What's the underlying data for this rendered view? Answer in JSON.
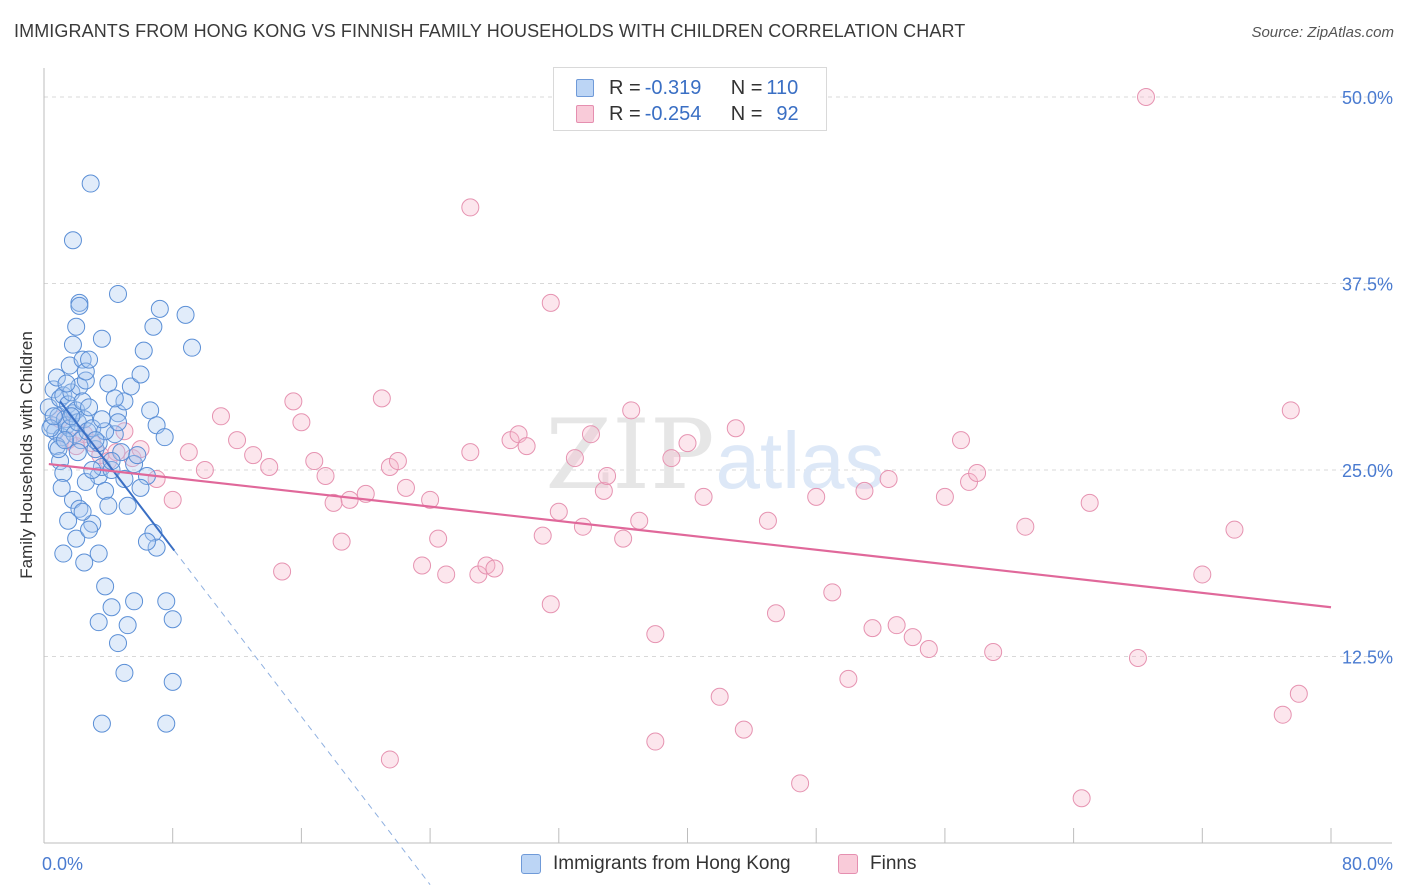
{
  "title": "IMMIGRANTS FROM HONG KONG VS FINNISH FAMILY HOUSEHOLDS WITH CHILDREN CORRELATION CHART",
  "source": "Source: ZipAtlas.com",
  "watermark": {
    "zip": "ZIP",
    "atlas": "atlas"
  },
  "colors": {
    "blue": "#3a6fc4",
    "blue_fill": "#a9c8f0",
    "pink": "#e0689a",
    "pink_fill": "#f5b8cb",
    "grid": "#d8d8d8",
    "tick_text": "#4a7bd0"
  },
  "stats": {
    "blue": {
      "r_label": "R = ",
      "r": "-0.319",
      "n_label": "N = ",
      "n": "110"
    },
    "pink": {
      "r_label": "R = ",
      "r": "-0.254",
      "n_label": "N = ",
      "n": "92"
    }
  },
  "chart_data": {
    "type": "scatter",
    "title": "IMMIGRANTS FROM HONG KONG VS FINNISH FAMILY HOUSEHOLDS WITH CHILDREN CORRELATION CHART",
    "xlabel": "",
    "ylabel": "Family Households with Children",
    "xlim": [
      0,
      80
    ],
    "ylim": [
      0,
      50
    ],
    "x_tick_labels": [
      "0.0%",
      "80.0%"
    ],
    "y_ticks": [
      12.5,
      25.0,
      37.5,
      50.0
    ],
    "y_tick_labels": [
      "12.5%",
      "25.0%",
      "37.5%",
      "50.0%"
    ],
    "grid": true,
    "legend_placement": "bottom-center",
    "series": [
      {
        "name": "Immigrants from Hong Kong",
        "color": "#3a6fc4",
        "trend": {
          "x0": 1.0,
          "y0": 29.6,
          "x1": 8.1,
          "y1": 19.6,
          "dash_to_x": 24.0
        },
        "points": [
          [
            0.3,
            29.2
          ],
          [
            0.5,
            28.0
          ],
          [
            0.6,
            30.4
          ],
          [
            0.7,
            27.6
          ],
          [
            0.8,
            31.2
          ],
          [
            0.9,
            28.6
          ],
          [
            1.0,
            29.8
          ],
          [
            1.1,
            27.2
          ],
          [
            1.2,
            30.0
          ],
          [
            1.3,
            28.4
          ],
          [
            1.4,
            28.0
          ],
          [
            1.5,
            29.4
          ],
          [
            1.6,
            27.8
          ],
          [
            1.7,
            30.2
          ],
          [
            1.8,
            28.8
          ],
          [
            1.9,
            27.4
          ],
          [
            2.0,
            29.0
          ],
          [
            2.1,
            28.2
          ],
          [
            2.2,
            30.6
          ],
          [
            2.3,
            27.0
          ],
          [
            2.4,
            29.6
          ],
          [
            2.5,
            28.4
          ],
          [
            2.6,
            31.0
          ],
          [
            2.7,
            27.6
          ],
          [
            2.8,
            29.2
          ],
          [
            0.4,
            27.8
          ],
          [
            0.6,
            28.6
          ],
          [
            0.8,
            26.6
          ],
          [
            1.0,
            25.6
          ],
          [
            1.2,
            24.8
          ],
          [
            1.4,
            30.8
          ],
          [
            1.6,
            32.0
          ],
          [
            1.8,
            33.4
          ],
          [
            2.0,
            34.6
          ],
          [
            2.2,
            36.2
          ],
          [
            2.4,
            32.4
          ],
          [
            2.6,
            31.6
          ],
          [
            2.8,
            32.4
          ],
          [
            3.0,
            27.8
          ],
          [
            3.2,
            26.4
          ],
          [
            3.4,
            24.6
          ],
          [
            3.6,
            25.2
          ],
          [
            3.8,
            23.6
          ],
          [
            4.0,
            22.6
          ],
          [
            4.2,
            25.0
          ],
          [
            4.4,
            27.4
          ],
          [
            4.6,
            28.8
          ],
          [
            4.8,
            26.2
          ],
          [
            5.0,
            24.4
          ],
          [
            5.2,
            22.6
          ],
          [
            1.1,
            23.8
          ],
          [
            1.5,
            21.6
          ],
          [
            2.0,
            20.4
          ],
          [
            2.5,
            18.8
          ],
          [
            3.0,
            21.4
          ],
          [
            3.4,
            19.4
          ],
          [
            3.8,
            17.2
          ],
          [
            4.2,
            15.8
          ],
          [
            4.6,
            13.4
          ],
          [
            5.0,
            11.4
          ],
          [
            1.8,
            23.0
          ],
          [
            2.2,
            22.4
          ],
          [
            2.6,
            24.2
          ],
          [
            3.0,
            25.0
          ],
          [
            3.4,
            26.8
          ],
          [
            3.8,
            27.6
          ],
          [
            4.2,
            25.6
          ],
          [
            4.6,
            28.2
          ],
          [
            5.0,
            29.6
          ],
          [
            5.4,
            30.6
          ],
          [
            6.0,
            31.4
          ],
          [
            6.6,
            29.0
          ],
          [
            7.0,
            28.0
          ],
          [
            7.5,
            27.2
          ],
          [
            6.2,
            33.0
          ],
          [
            6.8,
            34.6
          ],
          [
            7.2,
            35.8
          ],
          [
            6.4,
            24.6
          ],
          [
            6.8,
            20.8
          ],
          [
            7.0,
            19.8
          ],
          [
            7.6,
            16.2
          ],
          [
            8.0,
            15.0
          ],
          [
            8.8,
            35.4
          ],
          [
            9.2,
            33.2
          ],
          [
            3.6,
            33.8
          ],
          [
            4.0,
            30.8
          ],
          [
            2.9,
            44.2
          ],
          [
            1.8,
            40.4
          ],
          [
            4.6,
            36.8
          ],
          [
            2.2,
            36.0
          ],
          [
            3.4,
            14.8
          ],
          [
            3.6,
            8.0
          ],
          [
            7.6,
            8.0
          ],
          [
            8.0,
            10.8
          ],
          [
            5.2,
            14.6
          ],
          [
            5.6,
            16.2
          ],
          [
            6.4,
            20.2
          ],
          [
            3.2,
            27.0
          ],
          [
            3.6,
            28.4
          ],
          [
            4.4,
            29.8
          ],
          [
            5.6,
            25.4
          ],
          [
            5.8,
            26.0
          ],
          [
            6.0,
            23.8
          ],
          [
            2.4,
            22.2
          ],
          [
            2.8,
            21.0
          ],
          [
            1.2,
            19.4
          ],
          [
            0.9,
            26.4
          ],
          [
            1.3,
            27.0
          ],
          [
            1.7,
            28.6
          ],
          [
            2.1,
            26.2
          ]
        ]
      },
      {
        "name": "Finns",
        "color": "#e0689a",
        "trend": {
          "x0": 0.3,
          "y0": 25.4,
          "x1": 80.0,
          "y1": 15.8
        },
        "points": [
          [
            1.0,
            28.4
          ],
          [
            1.5,
            27.0
          ],
          [
            2.0,
            26.6
          ],
          [
            2.5,
            27.4
          ],
          [
            3.0,
            26.8
          ],
          [
            3.5,
            26.0
          ],
          [
            4.0,
            25.6
          ],
          [
            4.5,
            26.2
          ],
          [
            5.0,
            27.6
          ],
          [
            5.5,
            25.8
          ],
          [
            6.0,
            26.4
          ],
          [
            7.0,
            24.4
          ],
          [
            8.0,
            23.0
          ],
          [
            9.0,
            26.2
          ],
          [
            10.0,
            25.0
          ],
          [
            11.0,
            28.6
          ],
          [
            12.0,
            27.0
          ],
          [
            13.0,
            26.0
          ],
          [
            14.0,
            25.2
          ],
          [
            14.8,
            18.2
          ],
          [
            15.5,
            29.6
          ],
          [
            16.0,
            28.2
          ],
          [
            16.8,
            25.6
          ],
          [
            17.5,
            24.6
          ],
          [
            18.0,
            22.8
          ],
          [
            18.5,
            20.2
          ],
          [
            19.0,
            23.0
          ],
          [
            20.0,
            23.4
          ],
          [
            21.0,
            29.8
          ],
          [
            21.5,
            25.2
          ],
          [
            22.0,
            25.6
          ],
          [
            22.5,
            23.8
          ],
          [
            23.5,
            18.6
          ],
          [
            24.0,
            23.0
          ],
          [
            24.5,
            20.4
          ],
          [
            25.0,
            18.0
          ],
          [
            26.5,
            26.2
          ],
          [
            27.0,
            18.0
          ],
          [
            27.5,
            18.6
          ],
          [
            28.0,
            18.4
          ],
          [
            29.0,
            27.0
          ],
          [
            29.5,
            27.4
          ],
          [
            30.0,
            26.6
          ],
          [
            31.0,
            20.6
          ],
          [
            31.5,
            16.0
          ],
          [
            32.0,
            22.2
          ],
          [
            33.0,
            25.8
          ],
          [
            33.5,
            21.2
          ],
          [
            34.0,
            27.4
          ],
          [
            34.8,
            23.6
          ],
          [
            35.0,
            24.6
          ],
          [
            36.0,
            20.4
          ],
          [
            36.5,
            29.0
          ],
          [
            37.0,
            21.6
          ],
          [
            38.0,
            14.0
          ],
          [
            39.0,
            25.8
          ],
          [
            40.0,
            26.8
          ],
          [
            41.0,
            23.2
          ],
          [
            42.0,
            9.8
          ],
          [
            43.0,
            27.8
          ],
          [
            45.0,
            21.6
          ],
          [
            45.5,
            15.4
          ],
          [
            47.0,
            4.0
          ],
          [
            48.0,
            23.2
          ],
          [
            49.0,
            16.8
          ],
          [
            50.0,
            11.0
          ],
          [
            51.5,
            14.4
          ],
          [
            52.5,
            24.4
          ],
          [
            53.0,
            14.6
          ],
          [
            54.0,
            13.8
          ],
          [
            55.0,
            13.0
          ],
          [
            56.0,
            23.2
          ],
          [
            57.0,
            27.0
          ],
          [
            57.5,
            24.2
          ],
          [
            58.0,
            24.8
          ],
          [
            59.0,
            12.8
          ],
          [
            61.0,
            21.2
          ],
          [
            64.5,
            3.0
          ],
          [
            65.0,
            22.8
          ],
          [
            68.0,
            12.4
          ],
          [
            72.0,
            18.0
          ],
          [
            74.0,
            21.0
          ],
          [
            77.0,
            8.6
          ],
          [
            77.5,
            29.0
          ],
          [
            78.0,
            10.0
          ],
          [
            21.5,
            5.6
          ],
          [
            26.5,
            42.6
          ],
          [
            31.5,
            36.2
          ],
          [
            68.5,
            50.0
          ],
          [
            38.0,
            6.8
          ],
          [
            43.5,
            7.6
          ],
          [
            51.0,
            23.6
          ]
        ]
      }
    ]
  }
}
